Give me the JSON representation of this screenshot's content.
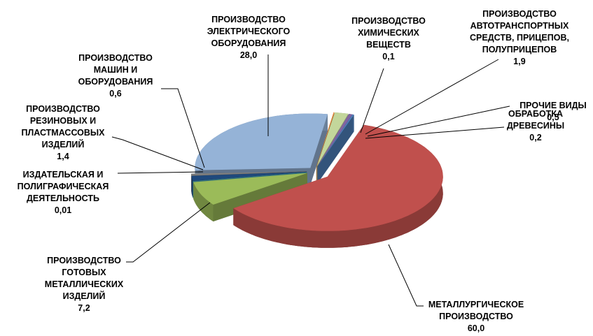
{
  "chart_data": {
    "type": "pie",
    "categories": [
      "ПРОИЗВОДСТВО ХИМИЧЕСКИХ ВЕЩЕСТВ",
      "ПРОИЗВОДСТВО АВТОТРАНСПОРТНЫХ СРЕДСТВ, ПРИЦЕПОВ, ПОЛУПРИЦЕПОВ",
      "ПРОЧИЕ ВИДЫ",
      "ОБРАБОТКА ДРЕВЕСИНЫ",
      "МЕТАЛЛУРГИЧЕСКОЕ ПРОИЗВОДСТВО",
      "ПРОИЗВОДСТВО ГОТОВЫХ МЕТАЛЛИЧЕСКИХ ИЗДЕЛИЙ",
      "ИЗДАТЕЛЬСКАЯ И ПОЛИГРАФИЧЕСКАЯ ДЕЯТЕЛЬНОСТЬ",
      "ПРОИЗВОДСТВО РЕЗИНОВЫХ И ПЛАСТМАССОВЫХ ИЗДЕЛИЙ",
      "ПРОИЗВОДСТВО МАШИН И ОБОРУДОВАНИЯ",
      "ПРОИЗВОДСТВО ЭЛЕКТРИЧЕСКОГО ОБОРУДОВАНИЯ"
    ],
    "values": [
      0.1,
      1.9,
      0.5,
      0.2,
      60.0,
      7.2,
      0.01,
      1.4,
      0.6,
      28.0
    ],
    "value_labels": [
      "0,1",
      "1,9",
      "0,5",
      "0,2",
      "60,0",
      "7,2",
      "0,01",
      "1,4",
      "0,6",
      "28,0"
    ],
    "colors": [
      "#f79646",
      "#c3d69b",
      "#8064a2",
      "#4f81bd",
      "#c0504d",
      "#9bbb59",
      "#4bacc6",
      "#1f497d",
      "#7f7f7f",
      "#95b3d7"
    ]
  }
}
